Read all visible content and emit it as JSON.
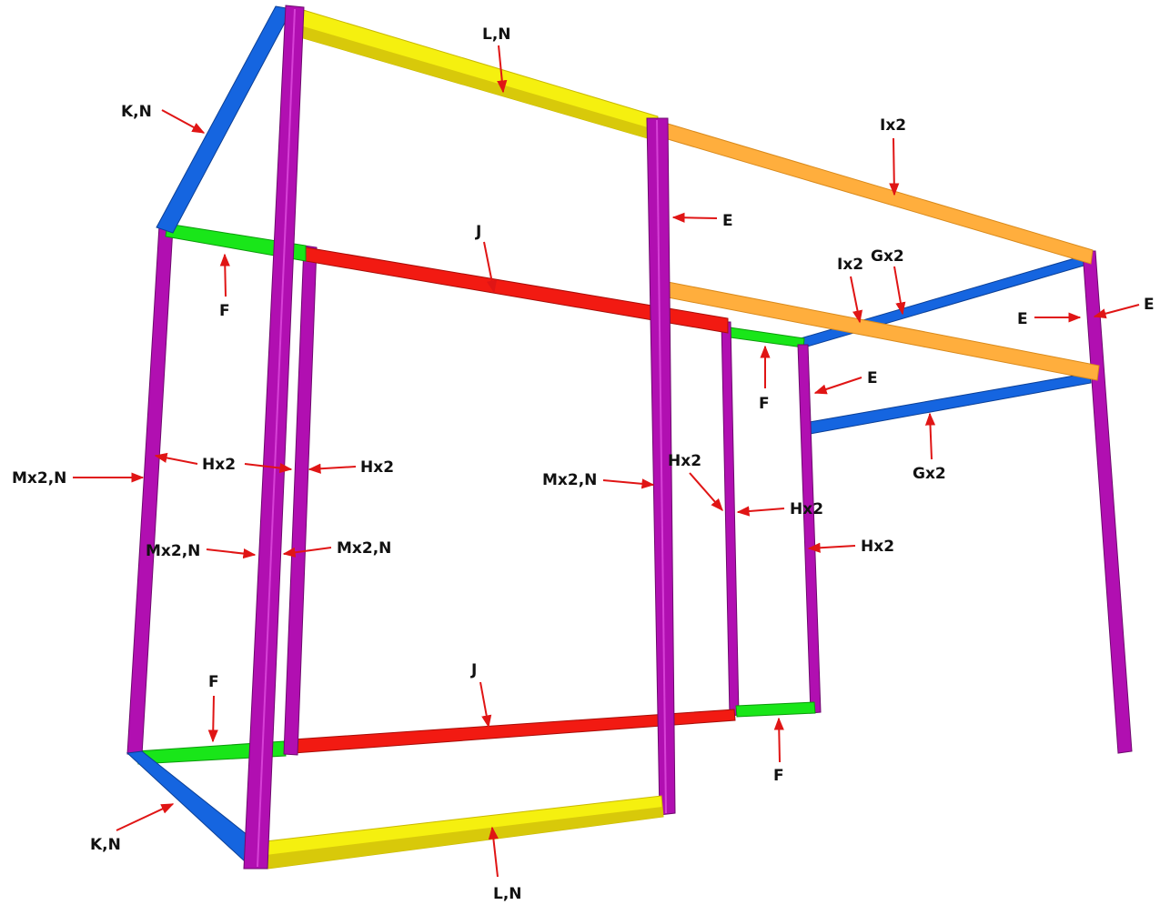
{
  "colors": {
    "post": "#b10fb1",
    "post_dark": "#6e0a6e",
    "post_light": "#d640d6",
    "blue": "#1565e0",
    "blue_dark": "#0b3f96",
    "green": "#19e619",
    "green_dark": "#0b9b0b",
    "red": "#f21a12",
    "red_dark": "#a80d08",
    "yellow": "#f5f00f",
    "yellow_dark": "#c8b800",
    "orange": "#ffae3d",
    "orange_dark": "#d98a1c",
    "arrow": "#e01515"
  },
  "labels": {
    "ln_top": "L,N",
    "kn_top": "K,N",
    "ix2_top": "Ix2",
    "e_center": "E",
    "j_top": "J",
    "f_top_left": "F",
    "ix2_mid": "Ix2",
    "gx2_top": "Gx2",
    "e_right_outer": "E",
    "e_right_inner": "E",
    "f_top_right": "F",
    "e_mid_right": "E",
    "gx2_mid": "Gx2",
    "mx2n_left": "Mx2,N",
    "hx2_left": "Hx2",
    "hx2_left2": "Hx2",
    "mx2n_center": "Mx2,N",
    "hx2_center": "Hx2",
    "hx2_center2": "Hx2",
    "mx2n_lower_left": "Mx2,N",
    "mx2n_lower_right": "Mx2,N",
    "hx2_right": "Hx2",
    "f_bottom_left": "F",
    "j_bottom": "J",
    "f_bottom_right": "F",
    "kn_bottom": "K,N",
    "ln_bottom": "L,N"
  }
}
